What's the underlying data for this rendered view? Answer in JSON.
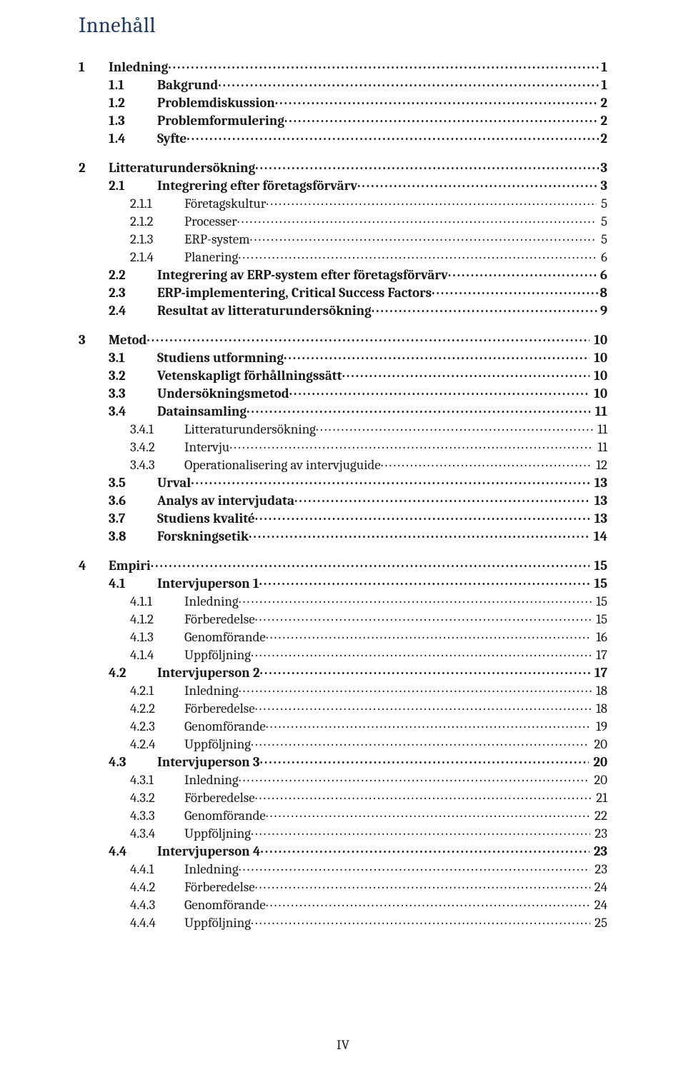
{
  "title": "Innehåll",
  "footer": "IV",
  "toc": [
    {
      "lvl": 1,
      "n": "1",
      "t": "Inledning",
      "p": "1"
    },
    {
      "lvl": 2,
      "bold": true,
      "n": "1.1",
      "t": "Bakgrund",
      "p": "1"
    },
    {
      "lvl": 2,
      "bold": true,
      "n": "1.2",
      "t": "Problemdiskussion",
      "p": "2"
    },
    {
      "lvl": 2,
      "bold": true,
      "n": "1.3",
      "t": "Problemformulering",
      "p": "2"
    },
    {
      "lvl": 2,
      "bold": true,
      "n": "1.4",
      "t": "Syfte",
      "p": "2"
    },
    {
      "lvl": 1,
      "n": "2",
      "t": "Litteraturundersökning",
      "p": "3"
    },
    {
      "lvl": 2,
      "bold": true,
      "n": "2.1",
      "t": "Integrering efter företagsförvärv",
      "p": "3"
    },
    {
      "lvl": 3,
      "n": "2.1.1",
      "t": "Företagskultur",
      "p": " 5"
    },
    {
      "lvl": 3,
      "n": "2.1.2",
      "t": "Processer",
      "p": " 5"
    },
    {
      "lvl": 3,
      "n": "2.1.3",
      "t": "ERP-system",
      "p": " 5"
    },
    {
      "lvl": 3,
      "n": "2.1.4",
      "t": "Planering",
      "p": " 6"
    },
    {
      "lvl": 2,
      "bold": true,
      "n": "2.2",
      "t": "Integrering av ERP-system efter företagsförvärv",
      "p": "6"
    },
    {
      "lvl": 2,
      "bold": true,
      "n": "2.3",
      "t": "ERP-implementering, Critical Success Factors",
      "p": "8"
    },
    {
      "lvl": 2,
      "bold": true,
      "n": "2.4",
      "t": "Resultat av litteraturundersökning",
      "p": "9"
    },
    {
      "lvl": 1,
      "n": "3",
      "t": "Metod",
      "p": " 10"
    },
    {
      "lvl": 2,
      "bold": true,
      "n": "3.1",
      "t": "Studiens utformning",
      "p": " 10"
    },
    {
      "lvl": 2,
      "bold": true,
      "n": "3.2",
      "t": "Vetenskapligt förhållningssätt",
      "p": " 10"
    },
    {
      "lvl": 2,
      "bold": true,
      "n": "3.3",
      "t": "Undersökningsmetod",
      "p": " 10"
    },
    {
      "lvl": 2,
      "bold": true,
      "n": "3.4",
      "t": "Datainsamling",
      "p": " 11"
    },
    {
      "lvl": 3,
      "n": "3.4.1",
      "t": "Litteraturundersökning",
      "p": " 11"
    },
    {
      "lvl": 3,
      "n": "3.4.2",
      "t": "Intervju",
      "p": " 11"
    },
    {
      "lvl": 3,
      "n": "3.4.3",
      "t": "Operationalisering av intervjuguide",
      "p": " 12"
    },
    {
      "lvl": 2,
      "bold": true,
      "n": "3.5",
      "t": "Urval",
      "p": " 13"
    },
    {
      "lvl": 2,
      "bold": true,
      "n": "3.6",
      "t": "Analys av intervjudata",
      "p": " 13"
    },
    {
      "lvl": 2,
      "bold": true,
      "n": "3.7",
      "t": "Studiens kvalité",
      "p": " 13"
    },
    {
      "lvl": 2,
      "bold": true,
      "n": "3.8",
      "t": "Forskningsetik",
      "p": " 14"
    },
    {
      "lvl": 1,
      "n": "4",
      "t": "Empiri",
      "p": " 15"
    },
    {
      "lvl": 2,
      "bold": true,
      "n": "4.1",
      "t": "Intervjuperson 1",
      "p": " 15"
    },
    {
      "lvl": 3,
      "n": "4.1.1",
      "t": "Inledning",
      "p": " 15"
    },
    {
      "lvl": 3,
      "n": "4.1.2",
      "t": "Förberedelse",
      "p": " 15"
    },
    {
      "lvl": 3,
      "n": "4.1.3",
      "t": "Genomförande",
      "p": " 16"
    },
    {
      "lvl": 3,
      "n": "4.1.4",
      "t": "Uppföljning",
      "p": " 17"
    },
    {
      "lvl": 2,
      "bold": true,
      "n": "4.2",
      "t": "Intervjuperson 2",
      "p": " 17"
    },
    {
      "lvl": 3,
      "n": "4.2.1",
      "t": "Inledning",
      "p": " 18"
    },
    {
      "lvl": 3,
      "n": "4.2.2",
      "t": "Förberedelse",
      "p": " 18"
    },
    {
      "lvl": 3,
      "n": "4.2.3",
      "t": "Genomförande",
      "p": " 19"
    },
    {
      "lvl": 3,
      "n": "4.2.4",
      "t": "Uppföljning",
      "p": " 20"
    },
    {
      "lvl": 2,
      "bold": true,
      "n": "4.3",
      "t": "Intervjuperson 3",
      "p": " 20"
    },
    {
      "lvl": 3,
      "n": "4.3.1",
      "t": "Inledning",
      "p": " 20"
    },
    {
      "lvl": 3,
      "n": "4.3.2",
      "t": "Förberedelse",
      "p": " 21"
    },
    {
      "lvl": 3,
      "n": "4.3.3",
      "t": "Genomförande",
      "p": " 22"
    },
    {
      "lvl": 3,
      "n": "4.3.4",
      "t": "Uppföljning",
      "p": " 23"
    },
    {
      "lvl": 2,
      "bold": true,
      "n": "4.4",
      "t": "Intervjuperson 4",
      "p": " 23"
    },
    {
      "lvl": 3,
      "n": "4.4.1",
      "t": "Inledning",
      "p": " 23"
    },
    {
      "lvl": 3,
      "n": "4.4.2",
      "t": "Förberedelse",
      "p": " 24"
    },
    {
      "lvl": 3,
      "n": "4.4.3",
      "t": "Genomförande",
      "p": " 24"
    },
    {
      "lvl": 3,
      "n": "4.4.4",
      "t": "Uppföljning",
      "p": " 25"
    }
  ]
}
